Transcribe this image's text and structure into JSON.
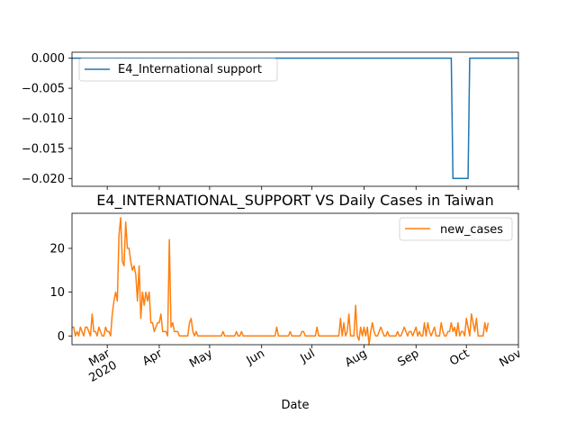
{
  "chart_data": [
    {
      "type": "line",
      "title": "",
      "xlabel": "",
      "ylabel": "",
      "ylim": [
        -0.0213,
        0.001
      ],
      "yticks": [
        0.0,
        -0.005,
        -0.01,
        -0.015,
        -0.02
      ],
      "ytick_labels": [
        "0.000",
        "−0.005",
        "−0.010",
        "−0.015",
        "−0.020"
      ],
      "xlim": [
        "2020-02-09",
        "2020-11-01"
      ],
      "legend_position": "upper-left",
      "color": "#1f77b4",
      "series": [
        {
          "name": "E4_International support",
          "x": [
            "2020-02-09",
            "2020-09-22",
            "2020-09-23",
            "2020-10-02",
            "2020-10-03",
            "2020-11-01"
          ],
          "y": [
            0.0,
            0.0,
            -0.02,
            -0.02,
            0.0,
            0.0
          ]
        }
      ]
    },
    {
      "type": "line",
      "title": "E4_INTERNATIONAL_SUPPORT VS Daily Cases in Taiwan",
      "xlabel": "Date",
      "ylabel": "",
      "ylim": [
        -2,
        28
      ],
      "yticks": [
        0,
        10,
        20
      ],
      "ytick_labels": [
        "0",
        "10",
        "20"
      ],
      "xlim": [
        "2020-02-09",
        "2020-11-01"
      ],
      "xticks": [
        "2020-03-01",
        "2020-04-01",
        "2020-05-01",
        "2020-06-01",
        "2020-07-01",
        "2020-08-01",
        "2020-09-01",
        "2020-10-01",
        "2020-11-01"
      ],
      "xtick_labels": [
        "Mar\n2020",
        "Apr",
        "May",
        "Jun",
        "Jul",
        "Aug",
        "Sep",
        "Oct",
        "Nov"
      ],
      "legend_position": "upper-right",
      "color": "#ff7f0e",
      "series": [
        {
          "name": "new_cases",
          "start_date": "2020-02-09",
          "values": [
            2,
            2,
            0,
            1,
            0,
            2,
            1,
            0,
            2,
            2,
            1,
            0,
            5,
            1,
            1,
            0,
            2,
            1,
            0,
            0,
            2,
            1,
            1,
            0,
            5,
            8,
            10,
            8,
            23,
            27,
            17,
            16,
            26,
            20,
            20,
            17,
            15,
            16,
            14,
            8,
            16,
            4,
            10,
            7,
            10,
            8,
            10,
            3,
            3,
            1,
            2,
            3,
            3,
            5,
            1,
            1,
            1,
            0,
            22,
            2,
            3,
            1,
            1,
            1,
            0,
            0,
            0,
            0,
            0,
            0,
            3,
            4,
            1,
            0,
            1,
            0,
            0,
            0,
            0,
            0,
            0,
            0,
            0,
            0,
            0,
            0,
            0,
            0,
            0,
            0,
            1,
            0,
            0,
            0,
            0,
            0,
            0,
            0,
            1,
            0,
            0,
            1,
            0,
            0,
            0,
            0,
            0,
            0,
            0,
            0,
            0,
            0,
            0,
            0,
            0,
            0,
            0,
            0,
            0,
            0,
            0,
            0,
            2,
            0,
            0,
            0,
            0,
            0,
            0,
            0,
            1,
            0,
            0,
            0,
            0,
            0,
            0,
            1,
            1,
            0,
            0,
            0,
            0,
            0,
            0,
            0,
            2,
            0,
            0,
            0,
            0,
            0,
            0,
            0,
            0,
            0,
            0,
            0,
            0,
            0,
            4,
            0,
            3,
            0,
            1,
            5,
            0,
            0,
            0,
            7,
            0,
            -1,
            2,
            0,
            2,
            0,
            2,
            -2,
            1,
            3,
            1,
            0,
            0,
            1,
            2,
            1,
            0,
            0,
            1,
            0,
            0,
            0,
            0,
            0,
            1,
            0,
            0,
            1,
            2,
            1,
            0,
            1,
            1,
            0,
            1,
            2,
            0,
            1,
            0,
            0,
            3,
            0,
            3,
            1,
            0,
            1,
            2,
            0,
            0,
            0,
            3,
            1,
            0,
            0,
            1,
            1,
            3,
            1,
            2,
            0,
            3,
            0,
            1,
            1,
            0,
            4,
            2,
            0,
            5,
            3,
            1,
            4,
            0,
            0,
            0,
            0,
            3,
            1,
            3
          ]
        }
      ]
    }
  ]
}
